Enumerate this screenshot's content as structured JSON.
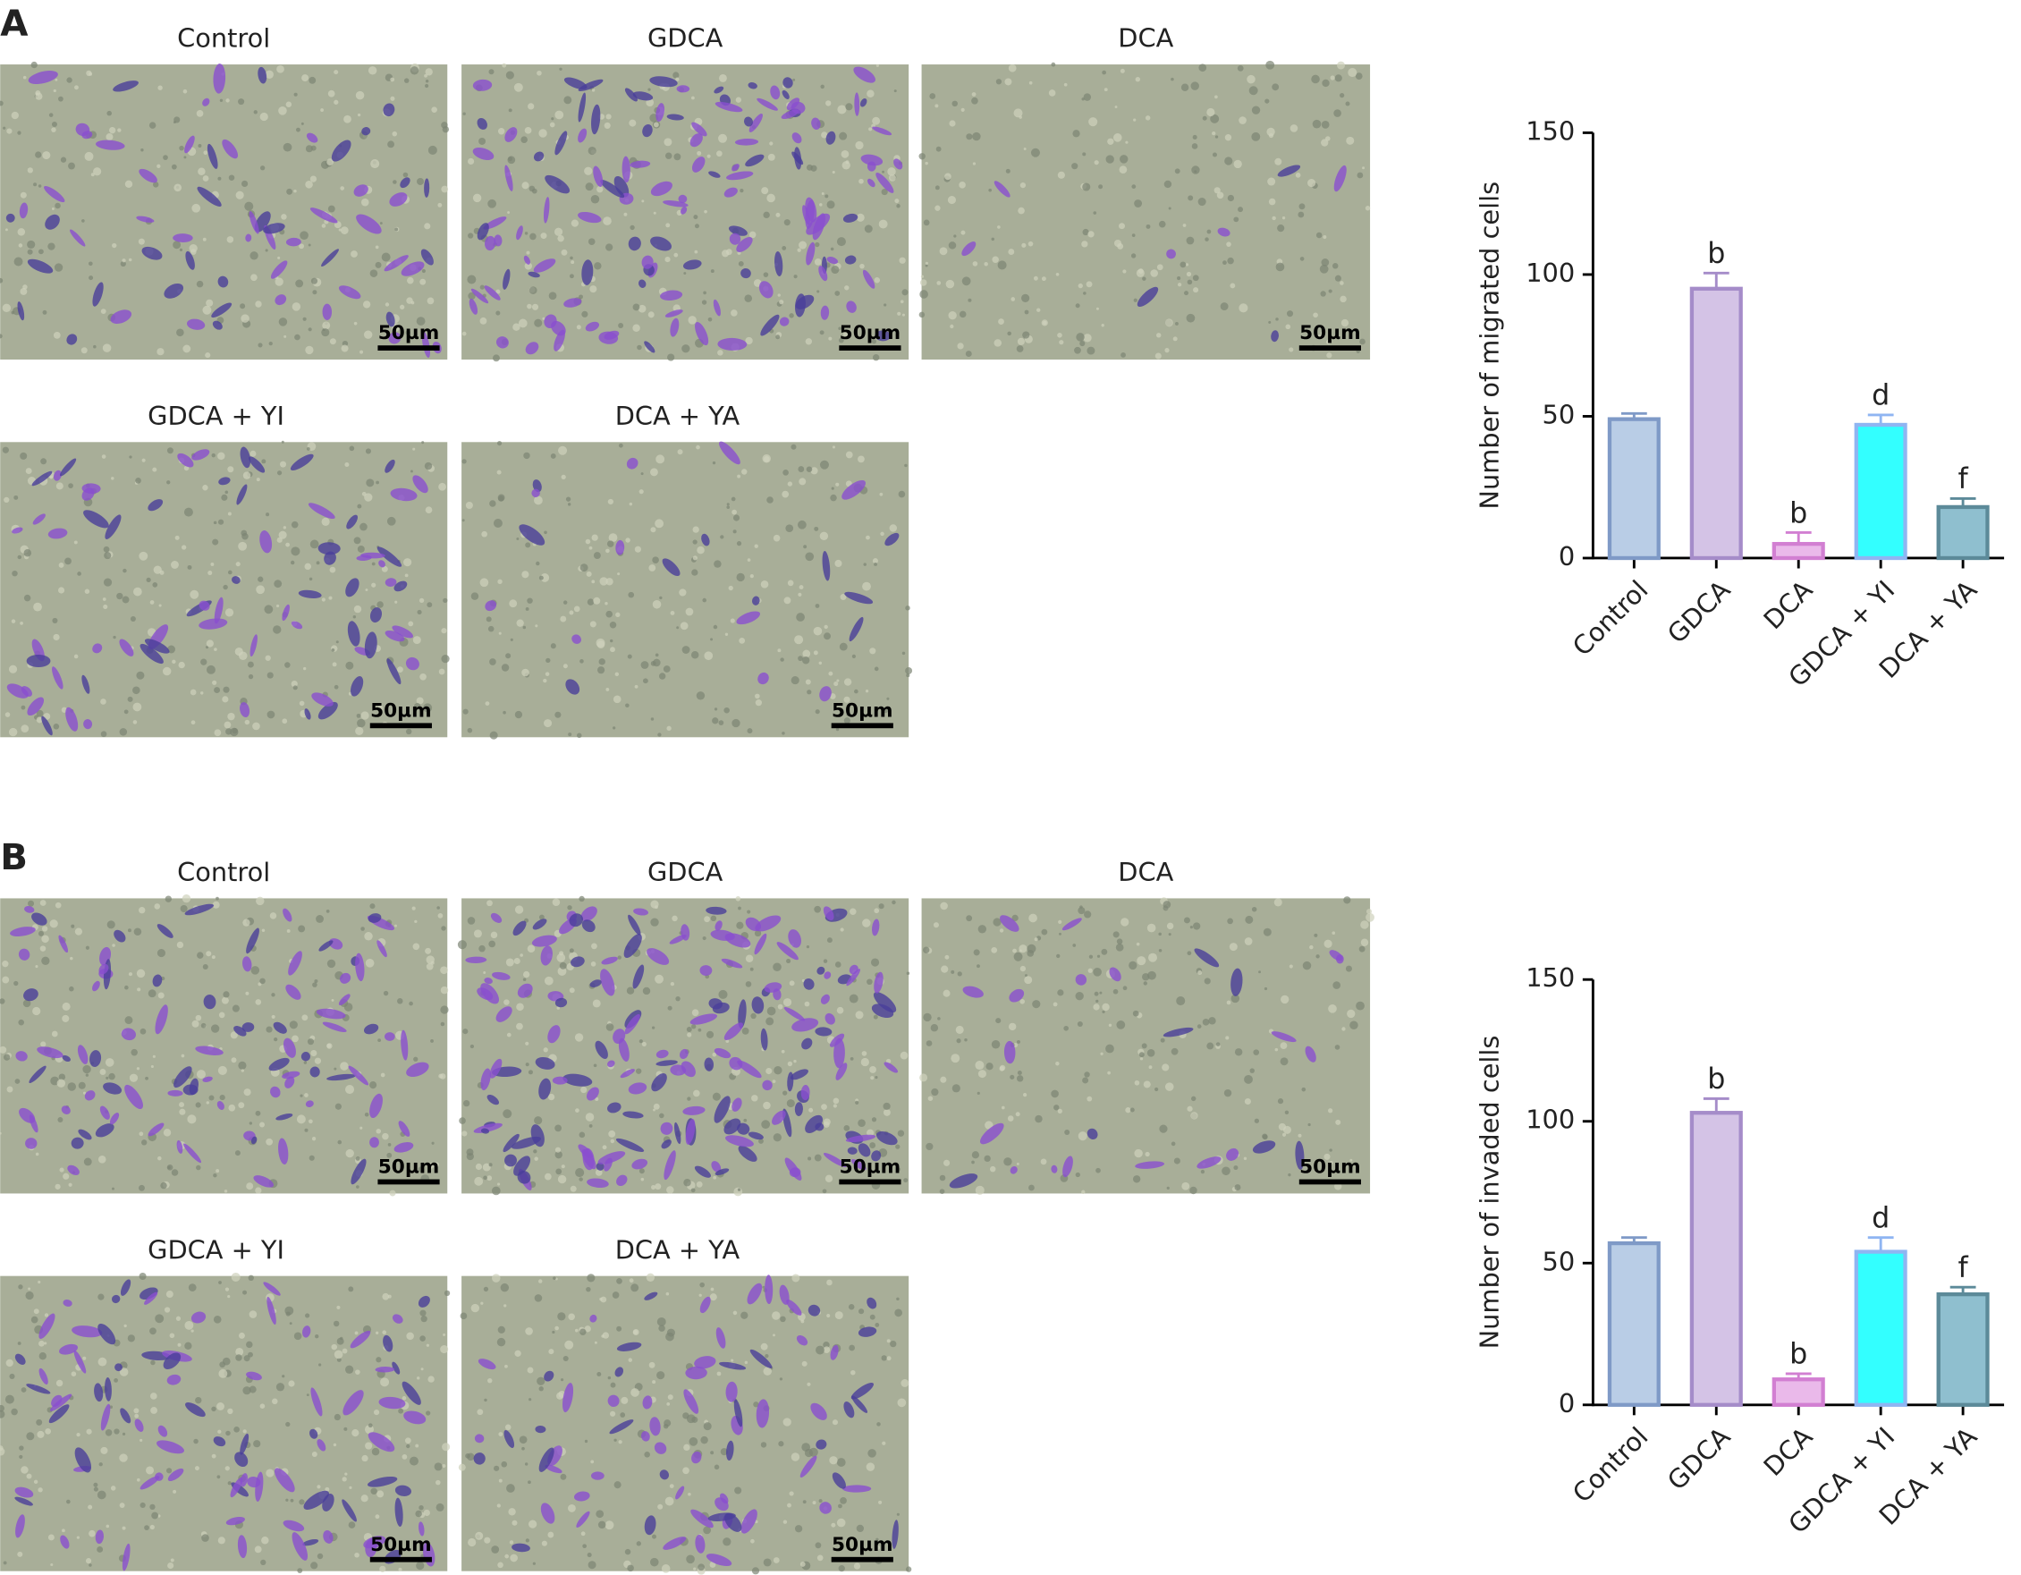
{
  "panels": [
    {
      "label": "A",
      "images": [
        {
          "title": "Control",
          "scale": "50µm"
        },
        {
          "title": "GDCA",
          "scale": "50µm"
        },
        {
          "title": "DCA",
          "scale": "50µm"
        },
        {
          "title": "GDCA + YI",
          "scale": "50µm"
        },
        {
          "title": "DCA + YA",
          "scale": "50µm"
        }
      ]
    },
    {
      "label": "B",
      "images": [
        {
          "title": "Control",
          "scale": "50µm"
        },
        {
          "title": "GDCA",
          "scale": "50µm"
        },
        {
          "title": "DCA",
          "scale": "50µm"
        },
        {
          "title": "GDCA + YI",
          "scale": "50µm"
        },
        {
          "title": "DCA + YA",
          "scale": "50µm"
        }
      ]
    }
  ],
  "chart_data": [
    {
      "type": "bar",
      "y_label": "Number of migrated cells",
      "categories": [
        "Control",
        "GDCA",
        "DCA",
        "GDCA + YI",
        "DCA + YA"
      ],
      "values": [
        49,
        95,
        5,
        47,
        18
      ],
      "errors": [
        2,
        5.5,
        4,
        3.5,
        3
      ],
      "significance": [
        null,
        "b",
        "b",
        "d",
        "f"
      ],
      "colors": [
        "#b9cde6",
        "#d4c3e6",
        "#eab9ea",
        "#33ffff",
        "#8fbfcf"
      ],
      "edge_colors": [
        "#7f9ac7",
        "#a58cc9",
        "#d27fd2",
        "#8fb5f2",
        "#5c8a99"
      ],
      "ylim": [
        0,
        150
      ],
      "yticks": [
        0,
        50,
        100,
        150
      ]
    },
    {
      "type": "bar",
      "y_label": "Number of invaded cells",
      "categories": [
        "Control",
        "GDCA",
        "DCA",
        "GDCA + YI",
        "DCA + YA"
      ],
      "values": [
        57,
        103,
        9,
        54,
        39
      ],
      "errors": [
        2,
        5,
        2,
        5,
        2.5
      ],
      "significance": [
        null,
        "b",
        "b",
        "d",
        "f"
      ],
      "colors": [
        "#b9cde6",
        "#d4c3e6",
        "#eab9ea",
        "#33ffff",
        "#8fbfcf"
      ],
      "edge_colors": [
        "#7f9ac7",
        "#a58cc9",
        "#d27fd2",
        "#8fb5f2",
        "#5c8a99"
      ],
      "ylim": [
        0,
        150
      ],
      "yticks": [
        0,
        50,
        100,
        150
      ]
    }
  ]
}
